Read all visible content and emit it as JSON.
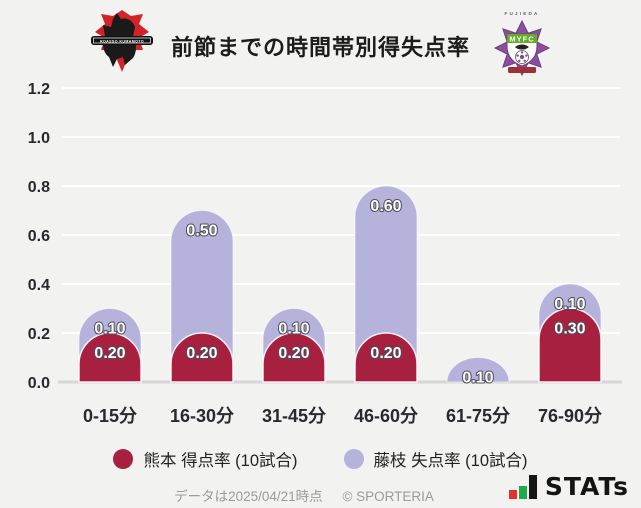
{
  "header": {
    "title": "前節までの時間帯別得失点率",
    "home_crest": {
      "team": "ロアッソ熊本",
      "banner_text": "ROASSO KUMAMOTO"
    },
    "away_crest": {
      "team": "藤枝MYFC",
      "top_text": "FUJIEDA",
      "band_text": "MYFC"
    }
  },
  "chart_data": {
    "type": "bar",
    "stacking": "stacked",
    "bar_style": "rounded-top",
    "title": "前節までの時間帯別得失点率",
    "categories": [
      "0-15分",
      "16-30分",
      "31-45分",
      "46-60分",
      "61-75分",
      "76-90分"
    ],
    "series": [
      {
        "key": "kumamoto-goals-for",
        "name": "熊本 得点率 (10試合)",
        "color": "#a82040",
        "values": [
          0.2,
          0.2,
          0.2,
          0.2,
          0.0,
          0.3
        ]
      },
      {
        "key": "fujieda-goals-against",
        "name": "藤枝 失点率 (10試合)",
        "color": "#b5b3dc",
        "values": [
          0.1,
          0.5,
          0.1,
          0.6,
          0.1,
          0.1
        ]
      }
    ],
    "ylim": [
      0,
      1.2
    ],
    "ytick_step": 0.2,
    "value_label_decimals": 2,
    "grid": true,
    "legend_position": "bottom"
  },
  "footer": {
    "note": "データは2025/04/21時点",
    "copyright": "© SPORTERIA",
    "stats_text": "STATs"
  },
  "colors": {
    "background": "#f2f2f0",
    "gridline": "#ffffff",
    "baseline": "#d8d6d4",
    "axis_text": "#29282e",
    "bar_label_text": "#ffffff",
    "bar_label_outline": "#4c4c57",
    "stats_red": "#e5302c",
    "stats_green": "#1faa4b",
    "stats_black": "#151515"
  }
}
